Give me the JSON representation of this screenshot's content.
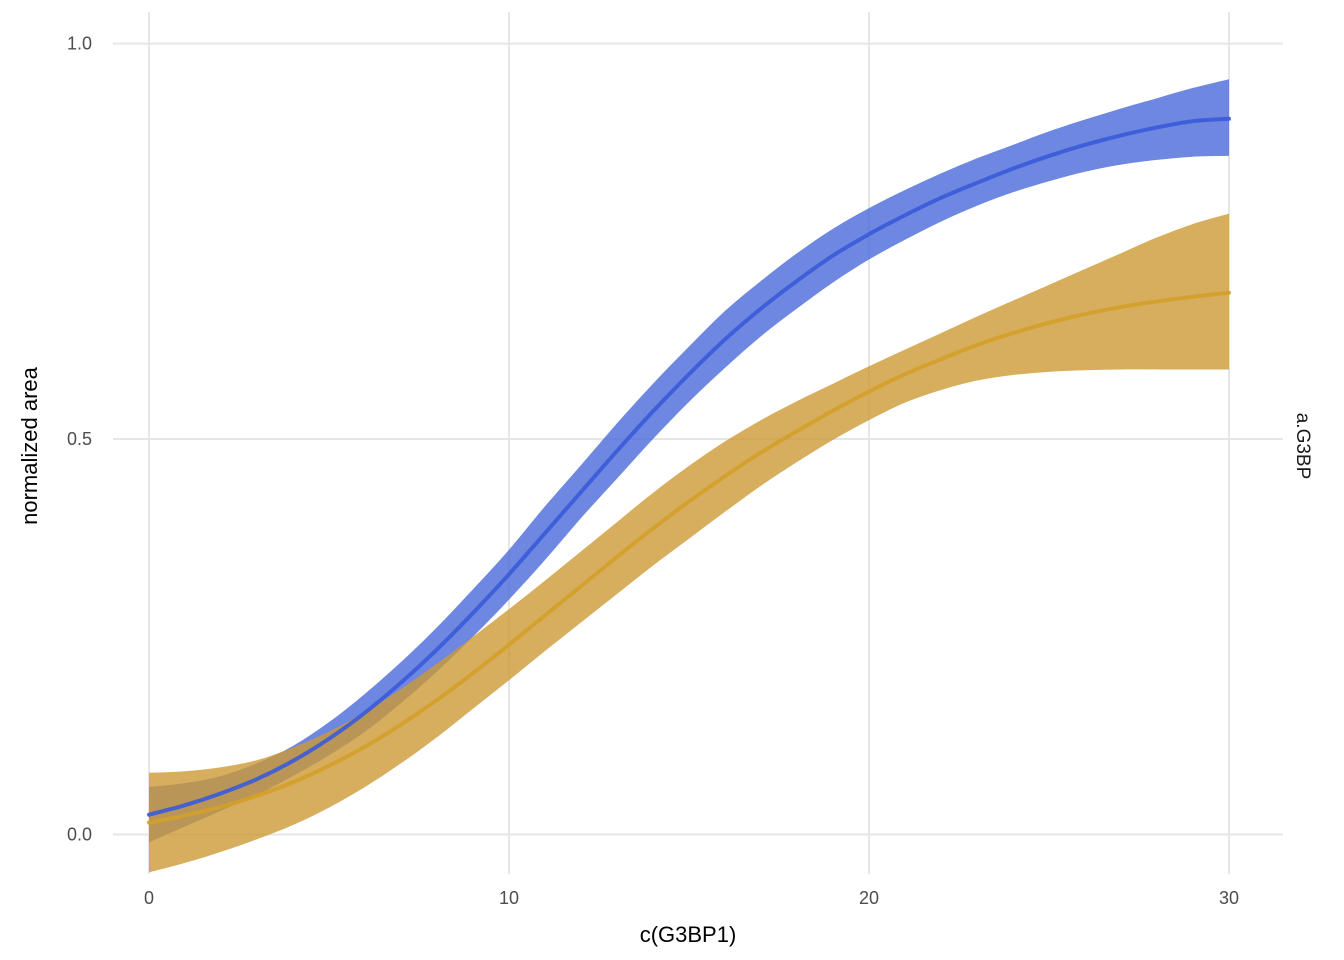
{
  "chart_data": {
    "type": "line",
    "title": "",
    "xlabel": "c(G3BP1)",
    "ylabel": "normalized area",
    "facet_label": "a.G3BP",
    "xlim": [
      -1,
      31.5
    ],
    "ylim": [
      -0.05,
      1.04
    ],
    "x_ticks": [
      0,
      10,
      20,
      30
    ],
    "x_tick_labels": [
      "0",
      "10",
      "20",
      "30"
    ],
    "y_ticks": [
      0.0,
      0.5,
      1.0
    ],
    "y_tick_labels": [
      "0.0",
      "0.5",
      "1.0"
    ],
    "grid": true,
    "legend": "none",
    "x": [
      0,
      1,
      2,
      3,
      4,
      5,
      6,
      7,
      8,
      9,
      10,
      11,
      12,
      13,
      14,
      15,
      16,
      17,
      18,
      19,
      20,
      21,
      22,
      23,
      24,
      25,
      26,
      27,
      28,
      29,
      30
    ],
    "series": [
      {
        "color": "#3a5bd9",
        "band_color": "#4a6ad9",
        "values": [
          0.025,
          0.037,
          0.052,
          0.07,
          0.093,
          0.121,
          0.154,
          0.192,
          0.234,
          0.28,
          0.329,
          0.381,
          0.433,
          0.485,
          0.535,
          0.582,
          0.626,
          0.665,
          0.7,
          0.732,
          0.759,
          0.783,
          0.805,
          0.824,
          0.842,
          0.858,
          0.872,
          0.884,
          0.894,
          0.902,
          0.905
        ],
        "lower": [
          -0.01,
          0.01,
          0.03,
          0.05,
          0.074,
          0.1,
          0.13,
          0.166,
          0.206,
          0.25,
          0.297,
          0.347,
          0.4,
          0.45,
          0.5,
          0.547,
          0.59,
          0.63,
          0.665,
          0.698,
          0.727,
          0.752,
          0.775,
          0.795,
          0.812,
          0.826,
          0.838,
          0.847,
          0.853,
          0.857,
          0.858
        ],
        "upper": [
          0.06,
          0.065,
          0.074,
          0.09,
          0.112,
          0.142,
          0.178,
          0.218,
          0.262,
          0.31,
          0.36,
          0.415,
          0.467,
          0.52,
          0.57,
          0.617,
          0.662,
          0.7,
          0.735,
          0.766,
          0.792,
          0.815,
          0.836,
          0.855,
          0.872,
          0.889,
          0.904,
          0.918,
          0.931,
          0.944,
          0.955
        ]
      },
      {
        "color": "#d4a02a",
        "band_color": "#cc9a35",
        "values": [
          0.015,
          0.024,
          0.035,
          0.049,
          0.066,
          0.087,
          0.111,
          0.139,
          0.17,
          0.204,
          0.24,
          0.277,
          0.314,
          0.351,
          0.387,
          0.421,
          0.453,
          0.483,
          0.51,
          0.536,
          0.56,
          0.582,
          0.601,
          0.619,
          0.634,
          0.647,
          0.658,
          0.667,
          0.674,
          0.68,
          0.685
        ],
        "lower": [
          -0.048,
          -0.036,
          -0.022,
          -0.006,
          0.012,
          0.034,
          0.06,
          0.09,
          0.123,
          0.159,
          0.195,
          0.232,
          0.268,
          0.304,
          0.34,
          0.374,
          0.408,
          0.441,
          0.471,
          0.499,
          0.524,
          0.546,
          0.562,
          0.574,
          0.581,
          0.585,
          0.587,
          0.588,
          0.588,
          0.588,
          0.588
        ],
        "upper": [
          0.078,
          0.08,
          0.085,
          0.094,
          0.11,
          0.13,
          0.155,
          0.184,
          0.216,
          0.25,
          0.285,
          0.321,
          0.358,
          0.395,
          0.432,
          0.466,
          0.497,
          0.524,
          0.548,
          0.57,
          0.592,
          0.613,
          0.634,
          0.655,
          0.675,
          0.695,
          0.715,
          0.735,
          0.755,
          0.772,
          0.785
        ]
      }
    ]
  }
}
